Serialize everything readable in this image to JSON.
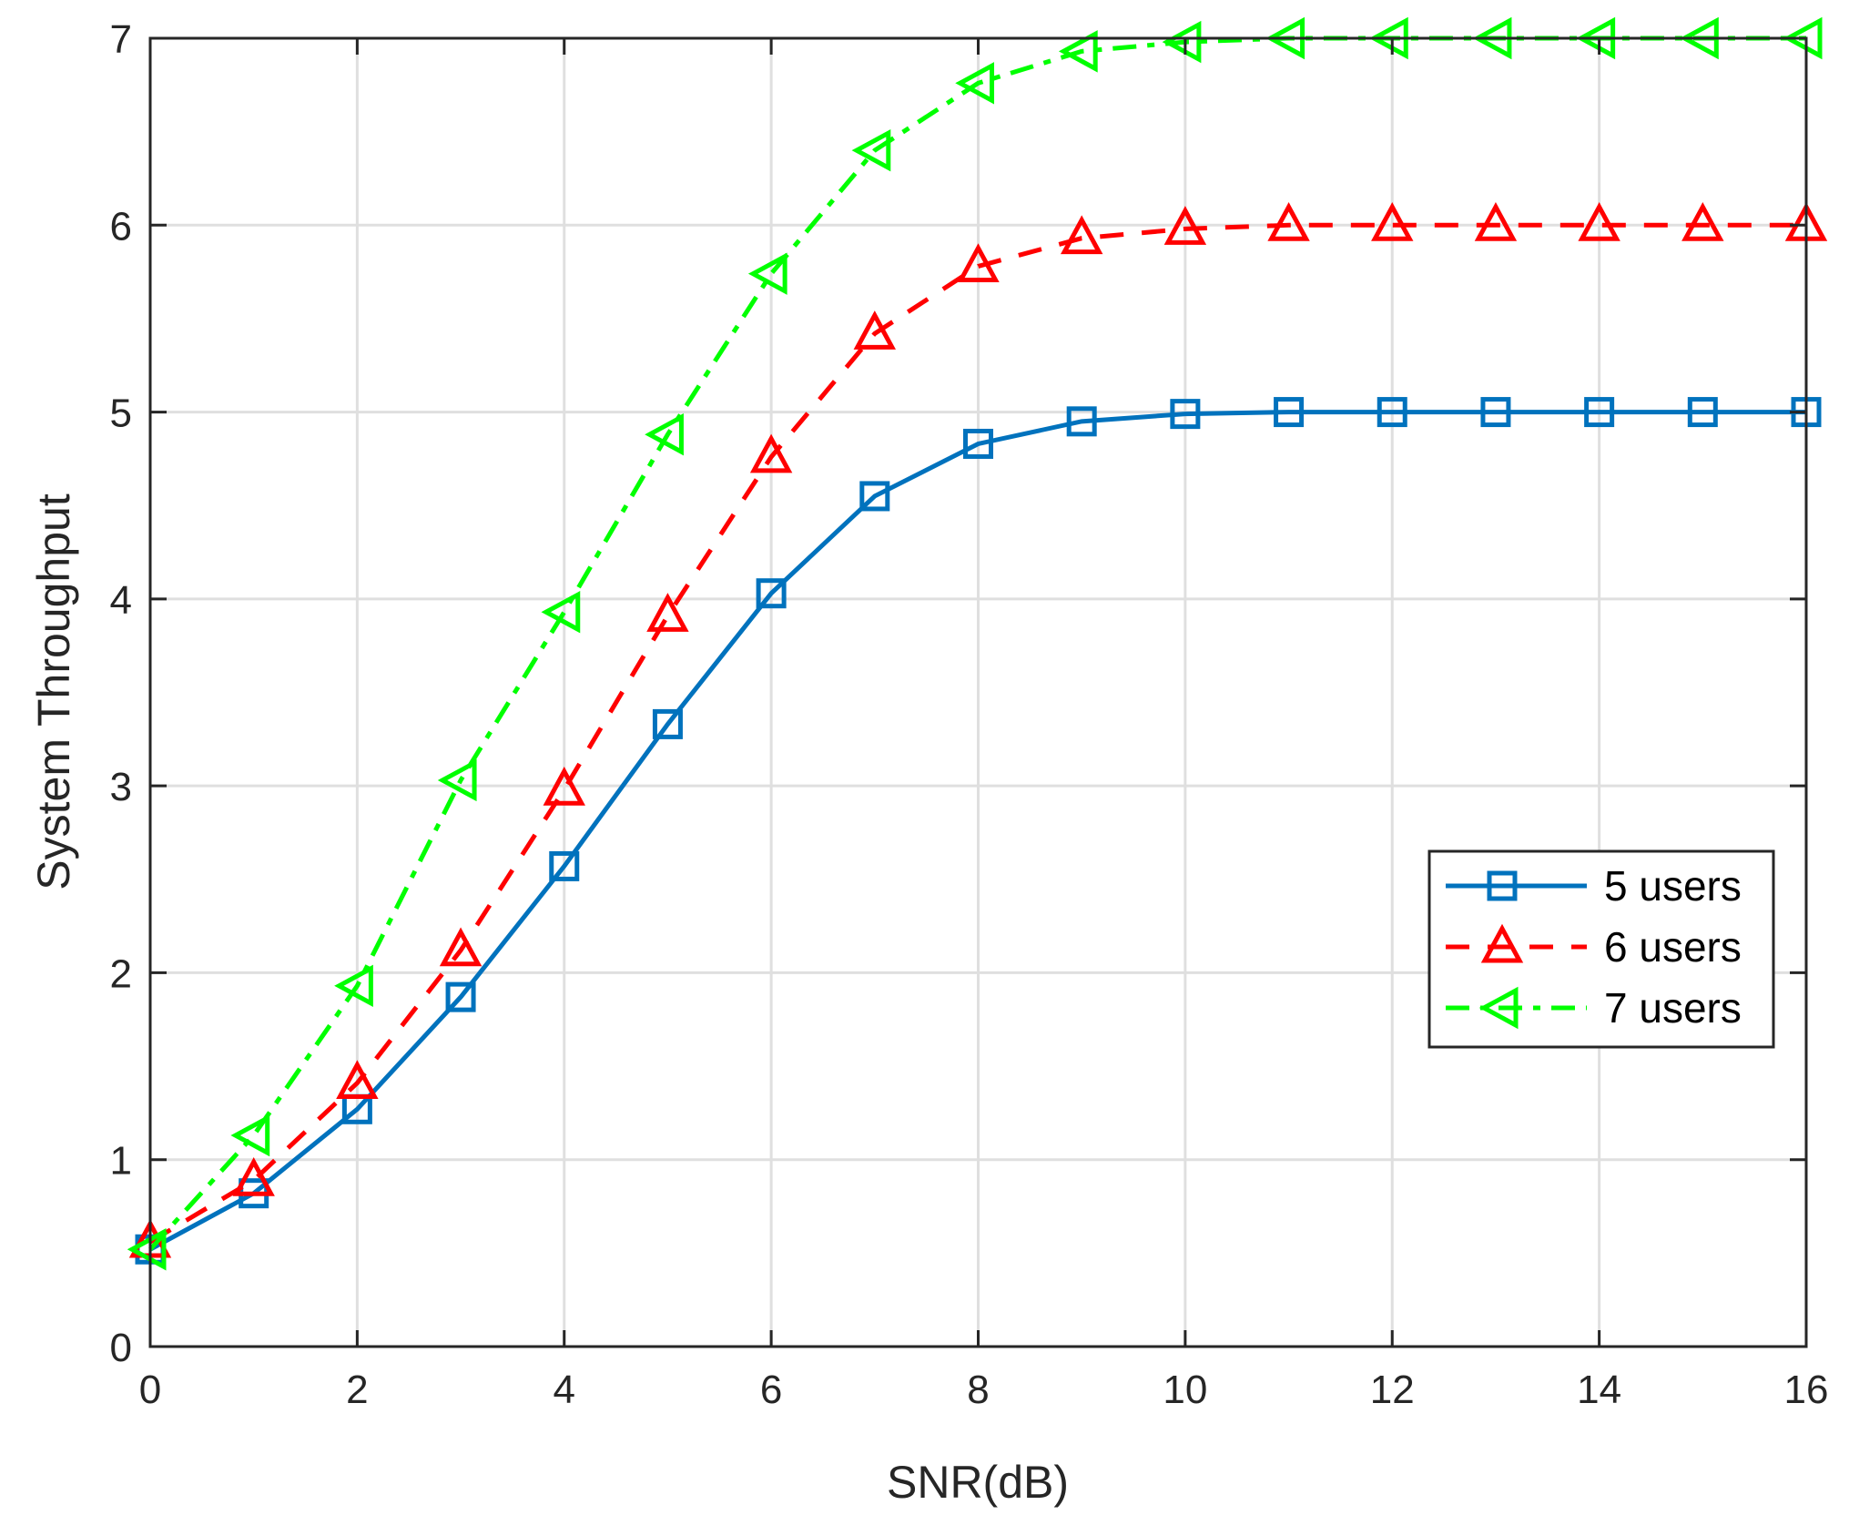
{
  "chart_data": {
    "type": "line",
    "title": "",
    "xlabel": "SNR(dB)",
    "ylabel": "System Throughput",
    "xlim": [
      0,
      16
    ],
    "ylim": [
      0,
      7
    ],
    "xticks": [
      0,
      2,
      4,
      6,
      8,
      10,
      12,
      14,
      16
    ],
    "yticks": [
      0,
      1,
      2,
      3,
      4,
      5,
      6,
      7
    ],
    "grid": true,
    "legend_position": "lower-right",
    "x": [
      0,
      1,
      2,
      3,
      4,
      5,
      6,
      7,
      8,
      9,
      10,
      11,
      12,
      13,
      14,
      15,
      16
    ],
    "series": [
      {
        "name": "5 users",
        "color": "#0072BD",
        "marker": "square",
        "dash": "solid",
        "values": [
          0.52,
          0.82,
          1.27,
          1.87,
          2.57,
          3.33,
          4.03,
          4.55,
          4.83,
          4.95,
          4.99,
          5,
          5,
          5,
          5,
          5,
          5
        ]
      },
      {
        "name": "6 users",
        "color": "#FF0000",
        "marker": "triangle-up",
        "dash": "dashed",
        "values": [
          0.56,
          0.89,
          1.41,
          2.12,
          2.98,
          3.91,
          4.76,
          5.42,
          5.78,
          5.93,
          5.98,
          6,
          6,
          6,
          6,
          6,
          6
        ]
      },
      {
        "name": "7 users",
        "color": "#00FF00",
        "marker": "triangle-left",
        "dash": "dashdot",
        "values": [
          0.52,
          1.13,
          1.93,
          3.03,
          3.93,
          4.88,
          5.74,
          6.4,
          6.76,
          6.93,
          6.98,
          7,
          7,
          7,
          7,
          7,
          7
        ]
      }
    ]
  }
}
